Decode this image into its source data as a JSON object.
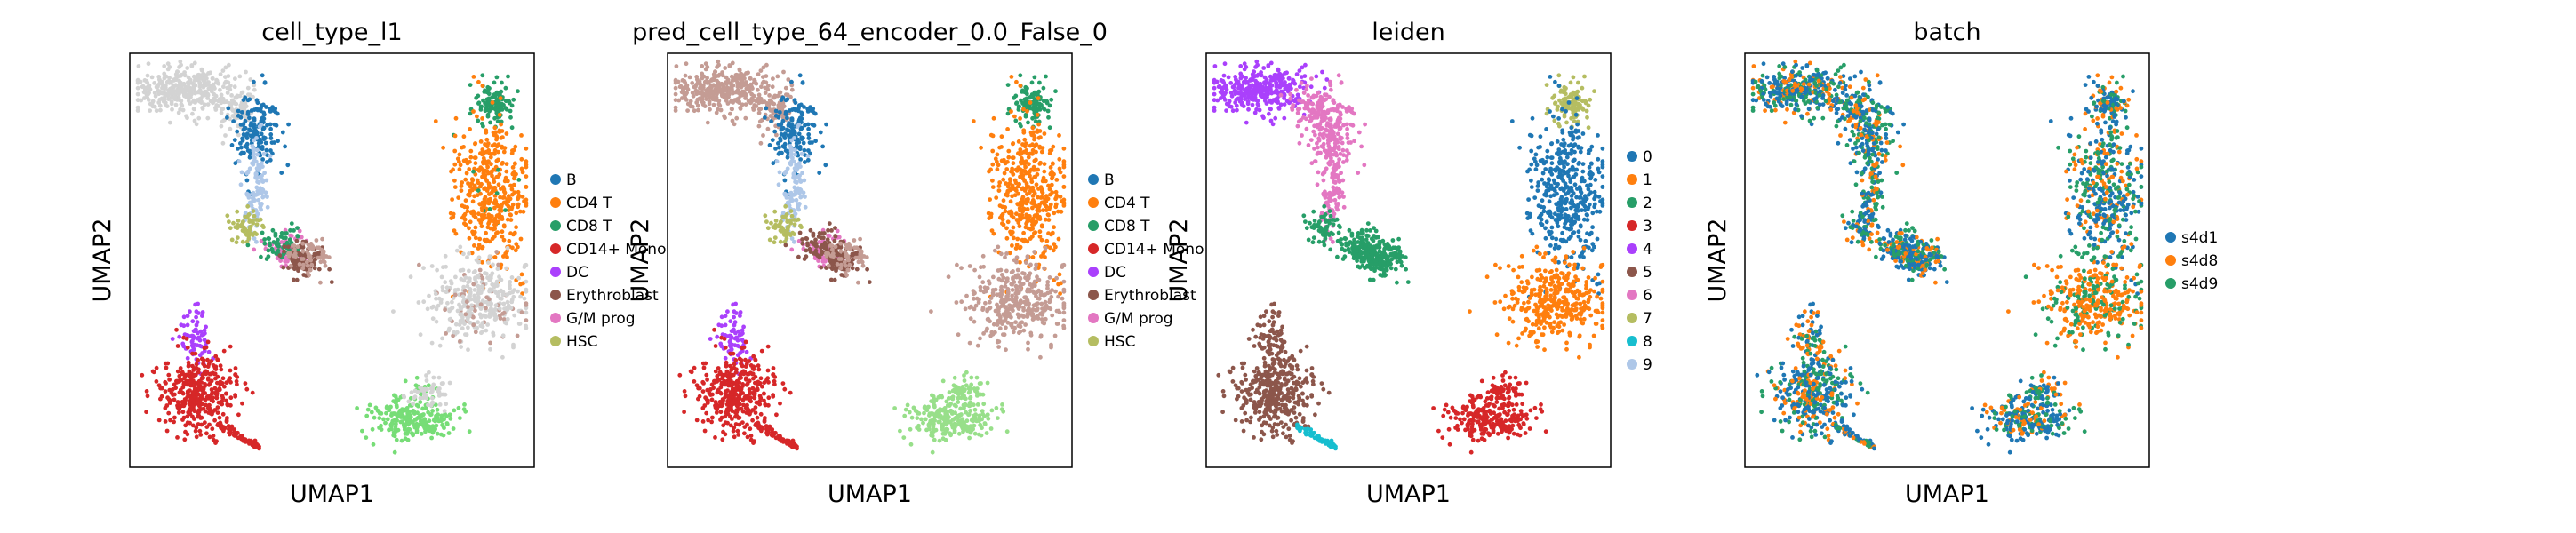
{
  "chart_data": [
    {
      "type": "scatter",
      "title": "cell_type_l1",
      "xlabel": "UMAP1",
      "ylabel": "UMAP2",
      "grid": false,
      "legend_placement": "right",
      "series": [
        {
          "name": "B",
          "color": "#1f77b4"
        },
        {
          "name": "CD4 T",
          "color": "#ff7f0e"
        },
        {
          "name": "CD8 T",
          "color": "#279e68"
        },
        {
          "name": "CD14+ Mono",
          "color": "#d62728"
        },
        {
          "name": "DC",
          "color": "#aa40fc"
        },
        {
          "name": "Erythroblast",
          "color": "#8c564b"
        },
        {
          "name": "G/M prog",
          "color": "#e377c2"
        },
        {
          "name": "HSC",
          "color": "#b5bd61"
        }
      ],
      "unlabeled_color": "#d3d3d3",
      "extra_colors": [
        "#77dd77",
        "#c9a19a"
      ]
    },
    {
      "type": "scatter",
      "title": "pred_cell_type_64_encoder_0.0_False_0",
      "xlabel": "UMAP1",
      "ylabel": "UMAP2",
      "grid": false,
      "legend_placement": "right",
      "series": [
        {
          "name": "B",
          "color": "#1f77b4"
        },
        {
          "name": "CD4 T",
          "color": "#ff7f0e"
        },
        {
          "name": "CD8 T",
          "color": "#279e68"
        },
        {
          "name": "CD14+ Mono",
          "color": "#d62728"
        },
        {
          "name": "DC",
          "color": "#aa40fc"
        },
        {
          "name": "Erythroblast",
          "color": "#8c564b"
        },
        {
          "name": "G/M prog",
          "color": "#e377c2"
        },
        {
          "name": "HSC",
          "color": "#b5bd61"
        }
      ],
      "extra_colors": [
        "#c49c94",
        "#98df8a"
      ]
    },
    {
      "type": "scatter",
      "title": "leiden",
      "xlabel": "UMAP1",
      "ylabel": "UMAP2",
      "grid": false,
      "legend_placement": "right",
      "series": [
        {
          "name": "0",
          "color": "#1f77b4"
        },
        {
          "name": "1",
          "color": "#ff7f0e"
        },
        {
          "name": "2",
          "color": "#279e68"
        },
        {
          "name": "3",
          "color": "#d62728"
        },
        {
          "name": "4",
          "color": "#aa40fc"
        },
        {
          "name": "5",
          "color": "#8c564b"
        },
        {
          "name": "6",
          "color": "#e377c2"
        },
        {
          "name": "7",
          "color": "#b5bd61"
        },
        {
          "name": "8",
          "color": "#17becf"
        },
        {
          "name": "9",
          "color": "#aec7e8"
        }
      ]
    },
    {
      "type": "scatter",
      "title": "batch",
      "xlabel": "UMAP1",
      "ylabel": "UMAP2",
      "grid": false,
      "legend_placement": "right",
      "series": [
        {
          "name": "s4d1",
          "color": "#1f77b4"
        },
        {
          "name": "s4d8",
          "color": "#ff7f0e"
        },
        {
          "name": "s4d9",
          "color": "#279e68"
        }
      ]
    }
  ]
}
